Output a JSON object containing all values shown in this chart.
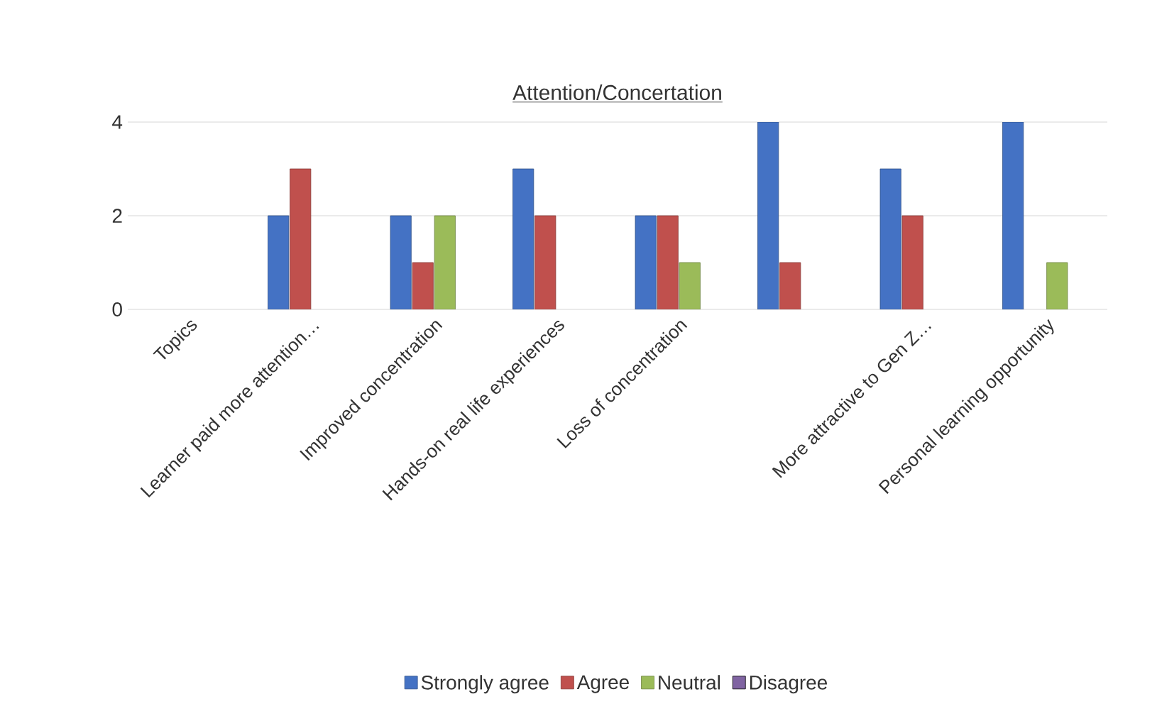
{
  "chart_data": {
    "type": "bar",
    "title": "Attention/Concertation",
    "categories": [
      "Topics",
      "Learner paid more attention…",
      "Improved concentration",
      "Hands-on real life experiences",
      "Loss of concentration",
      null,
      "More attractive to Gen Z…",
      "Personal learning opportunity"
    ],
    "series": [
      {
        "name": "Strongly agree",
        "color": "#4472c4",
        "values": [
          null,
          2,
          2,
          3,
          2,
          4,
          3,
          4
        ]
      },
      {
        "name": "Agree",
        "color": "#c0504d",
        "values": [
          null,
          3,
          1,
          2,
          2,
          1,
          2,
          null
        ]
      },
      {
        "name": "Neutral",
        "color": "#9bbb59",
        "values": [
          null,
          null,
          2,
          null,
          1,
          null,
          null,
          1
        ]
      },
      {
        "name": "Disagree",
        "color": "#8064a2",
        "values": [
          null,
          null,
          null,
          null,
          null,
          null,
          null,
          null
        ]
      }
    ],
    "ylim": [
      0,
      4
    ],
    "yticks": [
      0,
      2,
      4
    ],
    "grid": "y",
    "legend": "bottom"
  }
}
